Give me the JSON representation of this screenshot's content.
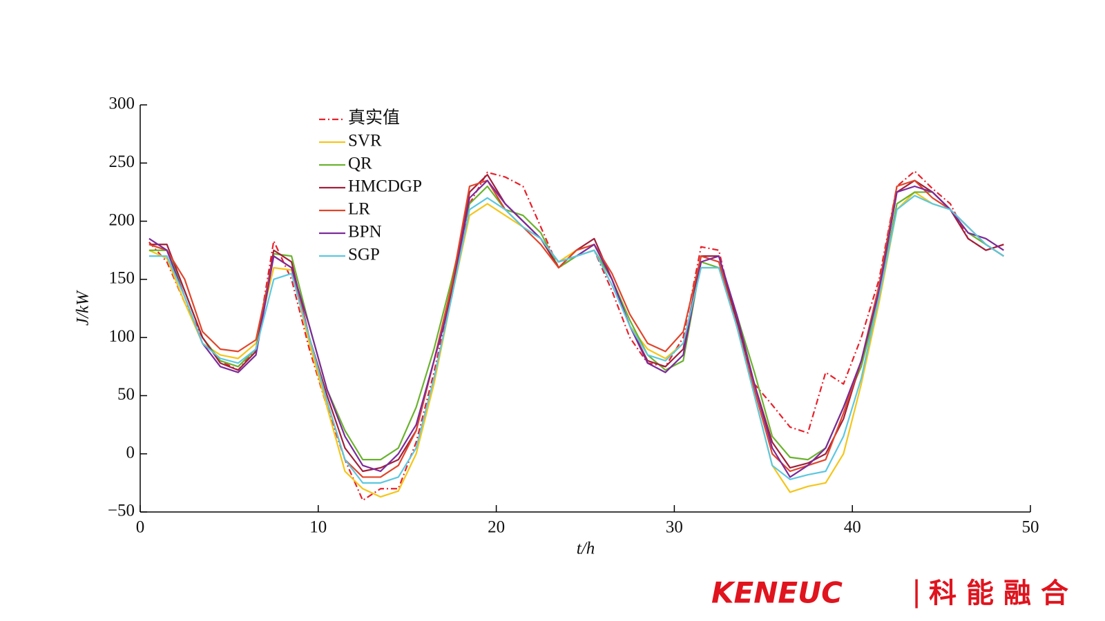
{
  "chart_data": {
    "type": "line",
    "ylabel": "J/kW",
    "xlabel": "t/h",
    "x": [
      0.5,
      1.5,
      2.5,
      3.5,
      4.5,
      5.5,
      6.5,
      7.5,
      8.5,
      9.5,
      10.5,
      11.5,
      12.5,
      13.5,
      14.5,
      15.5,
      16.5,
      17.5,
      18.5,
      19.5,
      20.5,
      21.5,
      22.5,
      23.5,
      24.5,
      25.5,
      26.5,
      27.5,
      28.5,
      29.5,
      30.5,
      31.5,
      32.5,
      33.5,
      34.5,
      35.5,
      36.5,
      37.5,
      38.5,
      39.5,
      40.5,
      41.5,
      42.5,
      43.5,
      44.5,
      45.5,
      46.5,
      47.5,
      48.5
    ],
    "series": [
      {
        "name": "真实值",
        "color": "#e8202a",
        "linestyle": "dashdot",
        "values": [
          182,
          165,
          130,
          100,
          80,
          72,
          90,
          183,
          150,
          90,
          40,
          -5,
          -40,
          -30,
          -30,
          10,
          70,
          140,
          215,
          242,
          238,
          230,
          195,
          160,
          170,
          175,
          140,
          100,
          78,
          75,
          100,
          178,
          175,
          110,
          60,
          42,
          23,
          18,
          70,
          60,
          100,
          150,
          230,
          243,
          228,
          215,
          185,
          175,
          180
        ]
      },
      {
        "name": "SVR",
        "color": "#f5c518",
        "values": [
          175,
          168,
          130,
          95,
          85,
          82,
          95,
          160,
          158,
          95,
          40,
          -15,
          -30,
          -37,
          -32,
          0,
          60,
          135,
          205,
          215,
          205,
          195,
          185,
          165,
          175,
          180,
          150,
          110,
          90,
          82,
          95,
          160,
          160,
          110,
          50,
          -10,
          -33,
          -28,
          -25,
          0,
          60,
          130,
          210,
          225,
          215,
          210,
          195,
          180,
          170
        ]
      },
      {
        "name": "QR",
        "color": "#6ab22e",
        "values": [
          175,
          175,
          140,
          100,
          80,
          75,
          90,
          172,
          170,
          110,
          55,
          20,
          -5,
          -5,
          5,
          40,
          90,
          150,
          215,
          230,
          210,
          205,
          190,
          160,
          170,
          175,
          150,
          115,
          85,
          72,
          80,
          165,
          160,
          120,
          70,
          15,
          -3,
          -5,
          5,
          40,
          75,
          135,
          215,
          225,
          225,
          210,
          190,
          180,
          170
        ]
      },
      {
        "name": "HMCDGP",
        "color": "#a0203a",
        "values": [
          180,
          180,
          140,
          100,
          78,
          72,
          88,
          175,
          165,
          100,
          50,
          5,
          -15,
          -12,
          -5,
          20,
          80,
          140,
          225,
          240,
          215,
          200,
          185,
          160,
          175,
          185,
          150,
          110,
          80,
          75,
          90,
          170,
          170,
          115,
          60,
          10,
          -12,
          -8,
          0,
          30,
          80,
          140,
          225,
          235,
          225,
          210,
          185,
          175,
          180
        ]
      },
      {
        "name": "LR",
        "color": "#e0452a",
        "values": [
          180,
          175,
          150,
          105,
          90,
          88,
          98,
          170,
          160,
          100,
          45,
          -5,
          -20,
          -20,
          -10,
          20,
          80,
          145,
          230,
          235,
          210,
          195,
          180,
          160,
          175,
          180,
          155,
          120,
          95,
          88,
          105,
          170,
          165,
          110,
          55,
          0,
          -15,
          -10,
          -5,
          35,
          80,
          145,
          230,
          235,
          220,
          210,
          195,
          180,
          170
        ]
      },
      {
        "name": "BPN",
        "color": "#7b2a9a",
        "values": [
          185,
          175,
          135,
          95,
          75,
          70,
          85,
          170,
          160,
          110,
          55,
          15,
          -10,
          -15,
          0,
          25,
          80,
          135,
          220,
          235,
          215,
          200,
          185,
          165,
          170,
          180,
          150,
          110,
          78,
          70,
          85,
          165,
          170,
          120,
          60,
          5,
          -20,
          -10,
          5,
          40,
          80,
          140,
          225,
          230,
          225,
          210,
          190,
          185,
          175
        ]
      },
      {
        "name": "SGP",
        "color": "#5bc8e0",
        "values": [
          170,
          170,
          135,
          95,
          82,
          78,
          90,
          150,
          155,
          100,
          45,
          -5,
          -25,
          -25,
          -20,
          5,
          65,
          135,
          210,
          220,
          210,
          195,
          185,
          165,
          170,
          175,
          145,
          110,
          85,
          80,
          95,
          160,
          160,
          110,
          50,
          -10,
          -22,
          -18,
          -15,
          15,
          65,
          135,
          210,
          222,
          215,
          210,
          195,
          180,
          170
        ]
      }
    ],
    "xlim": [
      0,
      50
    ],
    "xticks": [
      0,
      10,
      20,
      30,
      40,
      50
    ],
    "ylim": [
      -50,
      300
    ],
    "yticks": [
      {
        "value": -50,
        "label": "−50"
      },
      0,
      50,
      100,
      150,
      200,
      250,
      300
    ],
    "legend": "upper left"
  },
  "logo": {
    "brand": "KENEUC",
    "separator": "|",
    "name": "科能融合"
  }
}
